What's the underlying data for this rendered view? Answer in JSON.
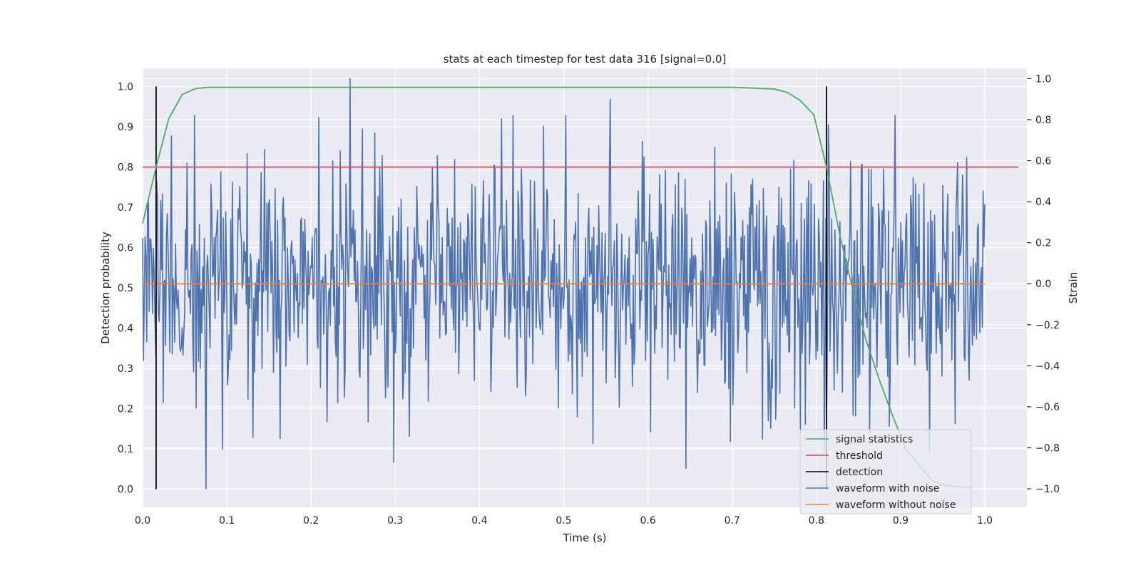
{
  "chart_data": {
    "type": "line",
    "title": "stats at each timestep for test data 316 [signal=0.0]",
    "xlabel": "Time (s)",
    "ylabel": "Detection probability",
    "y2label": "Strain",
    "xlim": [
      0.0,
      1.05
    ],
    "ylim": [
      -0.045,
      1.045
    ],
    "y2lim": [
      -1.09,
      1.05
    ],
    "xticks": [
      "0.0",
      "0.1",
      "0.2",
      "0.3",
      "0.4",
      "0.5",
      "0.6",
      "0.7",
      "0.8",
      "0.9",
      "1.0"
    ],
    "yticks": [
      "0.0",
      "0.1",
      "0.2",
      "0.3",
      "0.4",
      "0.5",
      "0.6",
      "0.7",
      "0.8",
      "0.9",
      "1.0"
    ],
    "y2ticks": [
      "−1.0",
      "−0.8",
      "−0.6",
      "−0.4",
      "−0.2",
      "0.0",
      "0.2",
      "0.4",
      "0.6",
      "0.8",
      "1.0"
    ],
    "grid": true,
    "legend_position": "lower-right",
    "colors": {
      "signal_statistics": "#55a868",
      "threshold": "#c44e52",
      "detection": "#000000",
      "waveform_with_noise": "#4c72b0",
      "waveform_without_noise": "#dd8452",
      "background": "#eaeaf2",
      "grid": "#ffffff"
    },
    "series": [
      {
        "name": "signal statistics",
        "axis": "left",
        "x": [
          0.0,
          0.016,
          0.031,
          0.047,
          0.063,
          0.078,
          0.1,
          0.2,
          0.3,
          0.4,
          0.5,
          0.6,
          0.7,
          0.75,
          0.766,
          0.781,
          0.797,
          0.812,
          0.828,
          0.844,
          0.859,
          0.875,
          0.891,
          0.906,
          0.922,
          0.938,
          0.953,
          0.969,
          0.984
        ],
        "y": [
          0.66,
          0.8,
          0.92,
          0.98,
          0.995,
          0.998,
          0.998,
          0.998,
          0.998,
          0.998,
          0.998,
          0.998,
          0.998,
          0.994,
          0.985,
          0.965,
          0.93,
          0.8,
          0.63,
          0.49,
          0.37,
          0.27,
          0.18,
          0.1,
          0.06,
          0.02,
          0.01,
          0.005,
          0.005
        ]
      },
      {
        "name": "threshold",
        "axis": "left",
        "x": [
          0.0,
          1.04
        ],
        "y": [
          0.8,
          0.8
        ]
      },
      {
        "name": "detection",
        "axis": "left",
        "x": [
          0.016,
          0.812
        ],
        "y": [
          1.0,
          1.0
        ]
      },
      {
        "name": "waveform with noise",
        "axis": "right",
        "x_range": [
          0.0,
          1.0
        ],
        "n_points": 1024,
        "y_range": [
          -1.0,
          1.0
        ],
        "peaks": [
          {
            "x": 0.246,
            "y": 1.0
          },
          {
            "x": 0.209,
            "y": 0.81
          },
          {
            "x": 0.555,
            "y": 0.9
          },
          {
            "x": 0.075,
            "y": -1.0
          },
          {
            "x": 0.645,
            "y": -0.9
          },
          {
            "x": 0.298,
            "y": -0.87
          }
        ]
      },
      {
        "name": "waveform without noise",
        "axis": "right",
        "x": [
          0.0,
          1.0
        ],
        "y": [
          0.0,
          0.0
        ]
      }
    ]
  },
  "legend": {
    "items": [
      {
        "label": "signal statistics",
        "color": "#55a868"
      },
      {
        "label": "threshold",
        "color": "#c44e52"
      },
      {
        "label": "detection",
        "color": "#000000"
      },
      {
        "label": "waveform with noise",
        "color": "#4c72b0"
      },
      {
        "label": "waveform without noise",
        "color": "#dd8452"
      }
    ]
  }
}
